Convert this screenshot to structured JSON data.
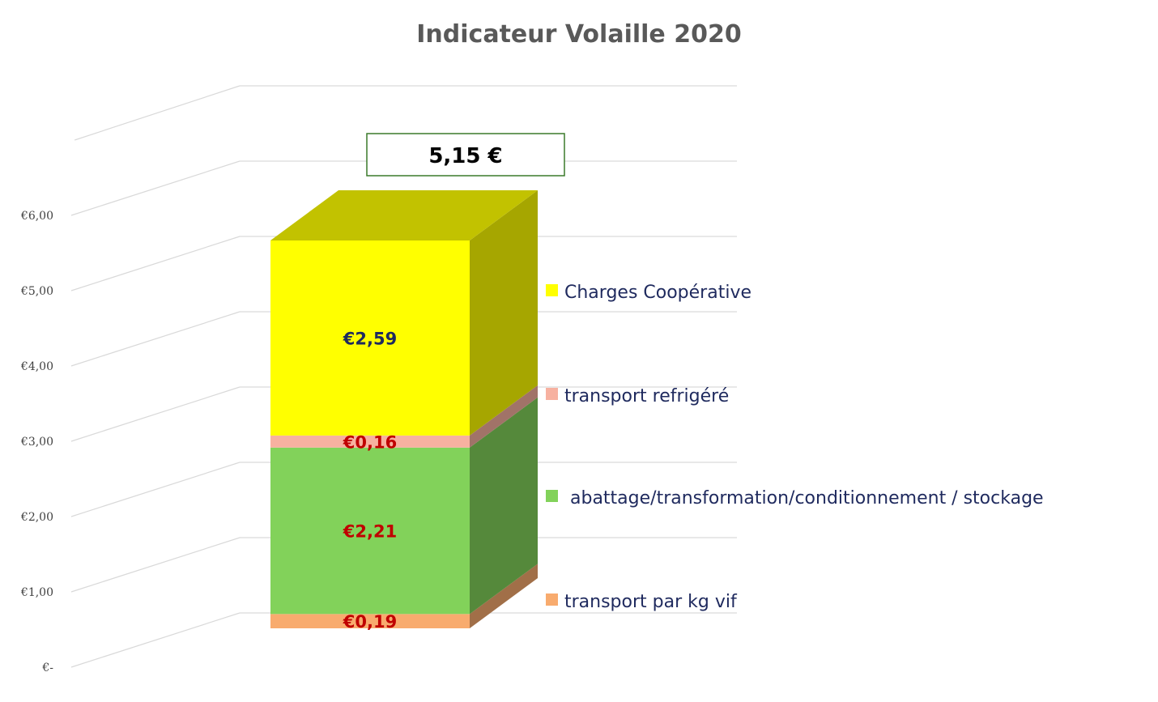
{
  "chart_data": {
    "type": "bar",
    "stacked": true,
    "three_d": true,
    "title": "Indicateur Volaille 2020",
    "ylim": [
      0,
      6
    ],
    "y_ticks": [
      0,
      1,
      2,
      3,
      4,
      5,
      6
    ],
    "y_tick_labels": [
      "€-",
      "€1,00",
      "€2,00",
      "€3,00",
      "€4,00",
      "€5,00",
      "€6,00"
    ],
    "grid": true,
    "legend_position": "right",
    "total_label": "5,15 €",
    "series": [
      {
        "name": "transport par kg vif",
        "value": 0.19,
        "label": "€0,19",
        "color": "#f8ab6e",
        "label_color": "#c00000"
      },
      {
        "name": "abattage/transformation/conditionnement / stockage",
        "value": 2.21,
        "label": "€2,21",
        "color": "#82d25a",
        "label_color": "#c00000"
      },
      {
        "name": "transport refrigéré",
        "value": 0.16,
        "label": "€0,16",
        "color": "#f7b1a0",
        "label_color": "#c00000"
      },
      {
        "name": "Charges Coopérative",
        "value": 2.59,
        "label": "€2,59",
        "color": "#ffff00",
        "label_color": "#1f2a5e"
      }
    ]
  }
}
